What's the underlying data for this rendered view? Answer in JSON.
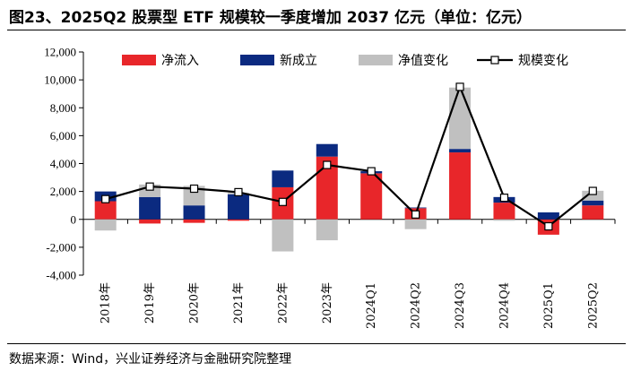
{
  "title": "图23、2025Q2 股票型 ETF 规模较一季度增加 2037 亿元（单位：亿元）",
  "source": "数据来源：Wind，兴业证券经济与金融研究院整理",
  "colors": {
    "net_inflow": "#e8262a",
    "new_issue": "#0b2a80",
    "nav_change": "#c0c0c0",
    "scale_line": "#000000"
  },
  "chart_data": {
    "type": "bar",
    "stacked": true,
    "categories": [
      "2018年",
      "2019年",
      "2020年",
      "2021年",
      "2022年",
      "2023年",
      "2024Q1",
      "2024Q2",
      "2024Q3",
      "2024Q4",
      "2025Q1",
      "2025Q2"
    ],
    "ylim": [
      -4000,
      12000
    ],
    "yticks": [
      -4000,
      -2000,
      0,
      2000,
      4000,
      6000,
      8000,
      10000,
      12000
    ],
    "ytick_labels": [
      "-4,000",
      "-2,000",
      "0",
      "2,000",
      "4,000",
      "6,000",
      "8,000",
      "10,000",
      "12,000"
    ],
    "legend_position": "top",
    "series": [
      {
        "name": "净流入",
        "kind": "bar",
        "values": [
          1300,
          -300,
          -250,
          -100,
          2300,
          4500,
          3300,
          800,
          4800,
          1200,
          -1100,
          1000
        ]
      },
      {
        "name": "新成立",
        "kind": "bar",
        "values": [
          700,
          1600,
          1000,
          1800,
          1200,
          900,
          150,
          50,
          250,
          400,
          500,
          350
        ]
      },
      {
        "name": "净值变化",
        "kind": "bar",
        "values": [
          -800,
          900,
          1400,
          100,
          -2300,
          -1500,
          0,
          -700,
          4400,
          -100,
          0,
          700
        ]
      },
      {
        "name": "规模变化",
        "kind": "line",
        "values": [
          1450,
          2350,
          2200,
          1950,
          1250,
          3900,
          3450,
          350,
          9500,
          1550,
          -500,
          2037
        ]
      }
    ]
  }
}
